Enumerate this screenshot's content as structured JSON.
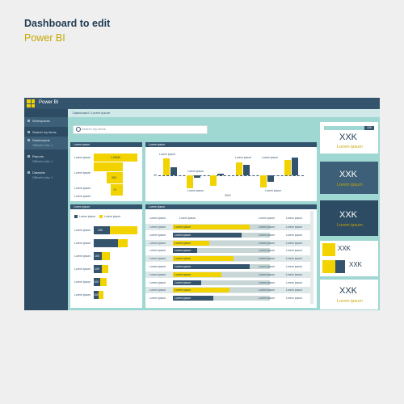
{
  "header": {
    "title": "Dashboard to edit",
    "subtitle": "Power BI"
  },
  "app": {
    "name": "Power BI"
  },
  "sidebar": {
    "items": [
      {
        "label": "Workspaces",
        "sub": ""
      },
      {
        "label": "Search my items",
        "sub": ""
      },
      {
        "label": "Dashboards",
        "sub": "Officeful doc 1"
      },
      {
        "label": "Reports",
        "sub": "Officeful doc 1"
      },
      {
        "label": "Datasets",
        "sub": "Officeful doc 1"
      }
    ]
  },
  "breadcrumb": "Dashboard / Lorem ipsum",
  "search": {
    "placeholder": "Search my items"
  },
  "card1": {
    "title": "Lorem ipsum",
    "rows": [
      {
        "label": "Lorem ipsum",
        "value": "1,000M"
      },
      {
        "label": "Lorem ipsum",
        "value": ""
      },
      {
        "label": "Lorem ipsum",
        "value": "300"
      },
      {
        "label": "Lorem ipsum",
        "value": "74"
      }
    ]
  },
  "card2": {
    "title": "Lorem ipsum",
    "label_a": "Lorem ipsum",
    "label_b": "Lorem ipsum",
    "label_c": "Lorem ipsum",
    "label_d": "Lorem ipsum",
    "label_e": "Lorem ipsum",
    "label_f": "Lorem ipsum",
    "zero": "20",
    "year": "2012"
  },
  "card3": {
    "title": "Lorem ipsum",
    "legend": [
      "Lorem ipsum",
      "Lorem ipsum"
    ],
    "rows": [
      {
        "label": "Lorem ipsum",
        "b": "100",
        "y": ""
      },
      {
        "label": "Lorem ipsum",
        "b": "",
        "y": ""
      },
      {
        "label": "Lorem ipsum",
        "b": "100",
        "y": ""
      },
      {
        "label": "Lorem ipsum",
        "b": "100",
        "y": ""
      },
      {
        "label": "Lorem ipsum",
        "b": "100",
        "y": ""
      },
      {
        "label": "Lorem ipsum",
        "b": "100",
        "y": ""
      }
    ]
  },
  "card4": {
    "title": "Lorem ipsum",
    "columns": [
      "Lorem ipsum",
      "Lorem ipsum",
      "Lorem ipsum",
      "Lorem ipsum",
      "Lorem ipsum"
    ],
    "rows": 10,
    "cell": "Lorem ipsum"
  },
  "kpi1": {
    "value": "XXK",
    "label": "Lorem ipsum",
    "progress_label": "100"
  },
  "kpi2": {
    "value": "XXK",
    "label": "Lorem ipsum"
  },
  "kpi3": {
    "value": "XXK",
    "label": "Lorem ipsum"
  },
  "kpi4": {
    "value_a": "XXK",
    "value_b": "XXK"
  },
  "kpi5": {
    "value": "XXK",
    "label": "Lorem ipsum"
  }
}
